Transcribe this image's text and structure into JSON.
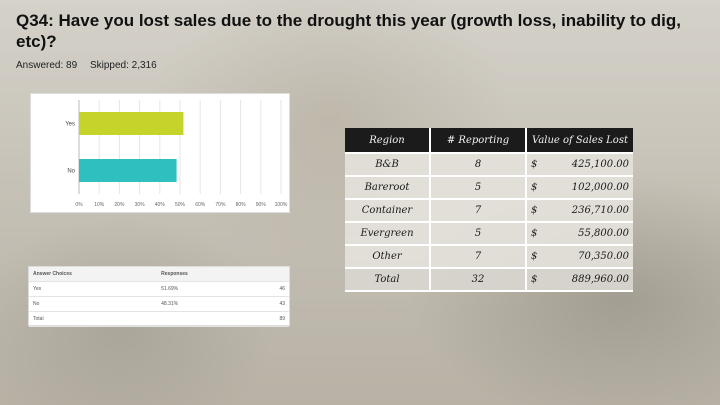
{
  "title": "Q34: Have you lost sales due to the drought this year (growth loss, inability to dig, etc)?",
  "answered": "Answered: 89",
  "skipped": "Skipped: 2,316",
  "colors": {
    "yes": "#c6d32b",
    "no": "#2fbfbf"
  },
  "chart_data": {
    "type": "bar",
    "orientation": "horizontal",
    "categories": [
      "Yes",
      "No"
    ],
    "values": [
      51.69,
      48.31
    ],
    "value_units": "percent",
    "xlim": [
      0,
      100
    ],
    "xticks": [
      "0%",
      "10%",
      "20%",
      "30%",
      "40%",
      "50%",
      "60%",
      "70%",
      "80%",
      "90%",
      "100%"
    ],
    "title": "",
    "xlabel": "",
    "ylabel": ""
  },
  "answer_table": {
    "headers": [
      "Answer Choices",
      "Responses"
    ],
    "rows": [
      {
        "choice": "Yes",
        "response": "51.69%",
        "count": "46"
      },
      {
        "choice": "No",
        "response": "48.31%",
        "count": "43"
      }
    ],
    "total_label": "Total",
    "total": "89"
  },
  "sales_table": {
    "headers": [
      "Region",
      "# Reporting",
      "Value of Sales Lost"
    ],
    "rows": [
      {
        "region": "B&B",
        "reporting": "8",
        "cur": "$",
        "value": "425,100.00"
      },
      {
        "region": "Bareroot",
        "reporting": "5",
        "cur": "$",
        "value": "102,000.00"
      },
      {
        "region": "Container",
        "reporting": "7",
        "cur": "$",
        "value": "236,710.00"
      },
      {
        "region": "Evergreen",
        "reporting": "5",
        "cur": "$",
        "value": "55,800.00"
      },
      {
        "region": "Other",
        "reporting": "7",
        "cur": "$",
        "value": "70,350.00"
      }
    ],
    "total": {
      "region": "Total",
      "reporting": "32",
      "cur": "$",
      "value": "889,960.00"
    }
  }
}
